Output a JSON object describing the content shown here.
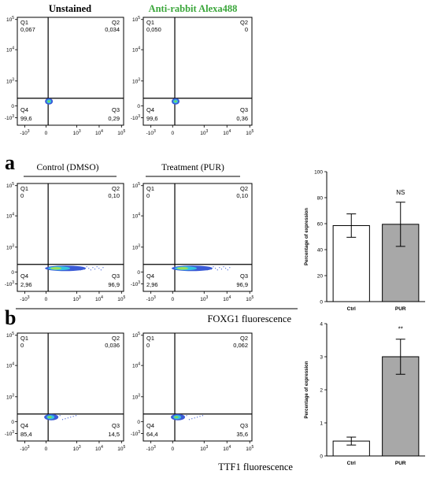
{
  "headers": {
    "unstained": "Unstained",
    "anti_rabbit": "Anti-rabbit Alexa488",
    "anti_rabbit_color": "#3aa63a",
    "control": "Control (DMSO)",
    "treatment": "Treatment (PUR)",
    "panel_a": "a",
    "panel_b": "b",
    "foxg1_axis": "FOXG1 fluorescence",
    "ttf1_axis": "TTF1 fluorescence"
  },
  "flow_axis": {
    "y_ticks": [
      "10^5",
      "10^4",
      "10^3",
      "0",
      "-10^3"
    ],
    "x_ticks": [
      "-10^3",
      "0",
      "10^3",
      "10^4",
      "10^5"
    ]
  },
  "flow_plots": [
    {
      "q1_label": "Q1",
      "q1": "0,067",
      "q2_label": "Q2",
      "q2": "0,034",
      "q3_label": "Q3",
      "q3": "0,29",
      "q4_label": "Q4",
      "q4": "99,6"
    },
    {
      "q1_label": "Q1",
      "q1": "0,050",
      "q2_label": "Q2",
      "q2": "0",
      "q3_label": "Q3",
      "q3": "0,36",
      "q4_label": "Q4",
      "q4": "99,6"
    },
    {
      "q1_label": "Q1",
      "q1": "0",
      "q2_label": "Q2",
      "q2": "0,10",
      "q3_label": "Q3",
      "q3": "96,9",
      "q4_label": "Q4",
      "q4": "2,96"
    },
    {
      "q1_label": "Q1",
      "q1": "0",
      "q2_label": "Q2",
      "q2": "0,10",
      "q3_label": "Q3",
      "q3": "96,9",
      "q4_label": "Q4",
      "q4": "2,96"
    },
    {
      "q1_label": "Q1",
      "q1": "0",
      "q2_label": "Q2",
      "q2": "0,036",
      "q3_label": "Q3",
      "q3": "14,5",
      "q4_label": "Q4",
      "q4": "85,4"
    },
    {
      "q1_label": "Q1",
      "q1": "0",
      "q2_label": "Q2",
      "q2": "0,062",
      "q3_label": "Q3",
      "q3": "35,6",
      "q4_label": "Q4",
      "q4": "64,4"
    }
  ],
  "chart_data": [
    {
      "type": "bar",
      "categories": [
        "Ctrl",
        "PUR"
      ],
      "values": [
        58.5,
        59.5
      ],
      "errors": [
        9,
        17
      ],
      "colors": [
        "#ffffff",
        "#a8a8a8"
      ],
      "ylabel": "Percentage of expression",
      "ylim": [
        0,
        100
      ],
      "yticks": [
        0,
        20,
        40,
        60,
        80,
        100
      ],
      "annotation": "NS",
      "annotation_index": 1
    },
    {
      "type": "bar",
      "categories": [
        "Ctrl",
        "PUR"
      ],
      "values": [
        0.45,
        3.0
      ],
      "errors": [
        0.12,
        0.53
      ],
      "colors": [
        "#ffffff",
        "#a8a8a8"
      ],
      "ylabel": "Percentage of expression",
      "ylim": [
        0,
        4
      ],
      "yticks": [
        0,
        1,
        2,
        3,
        4
      ],
      "annotation": "**",
      "annotation_index": 1
    }
  ]
}
